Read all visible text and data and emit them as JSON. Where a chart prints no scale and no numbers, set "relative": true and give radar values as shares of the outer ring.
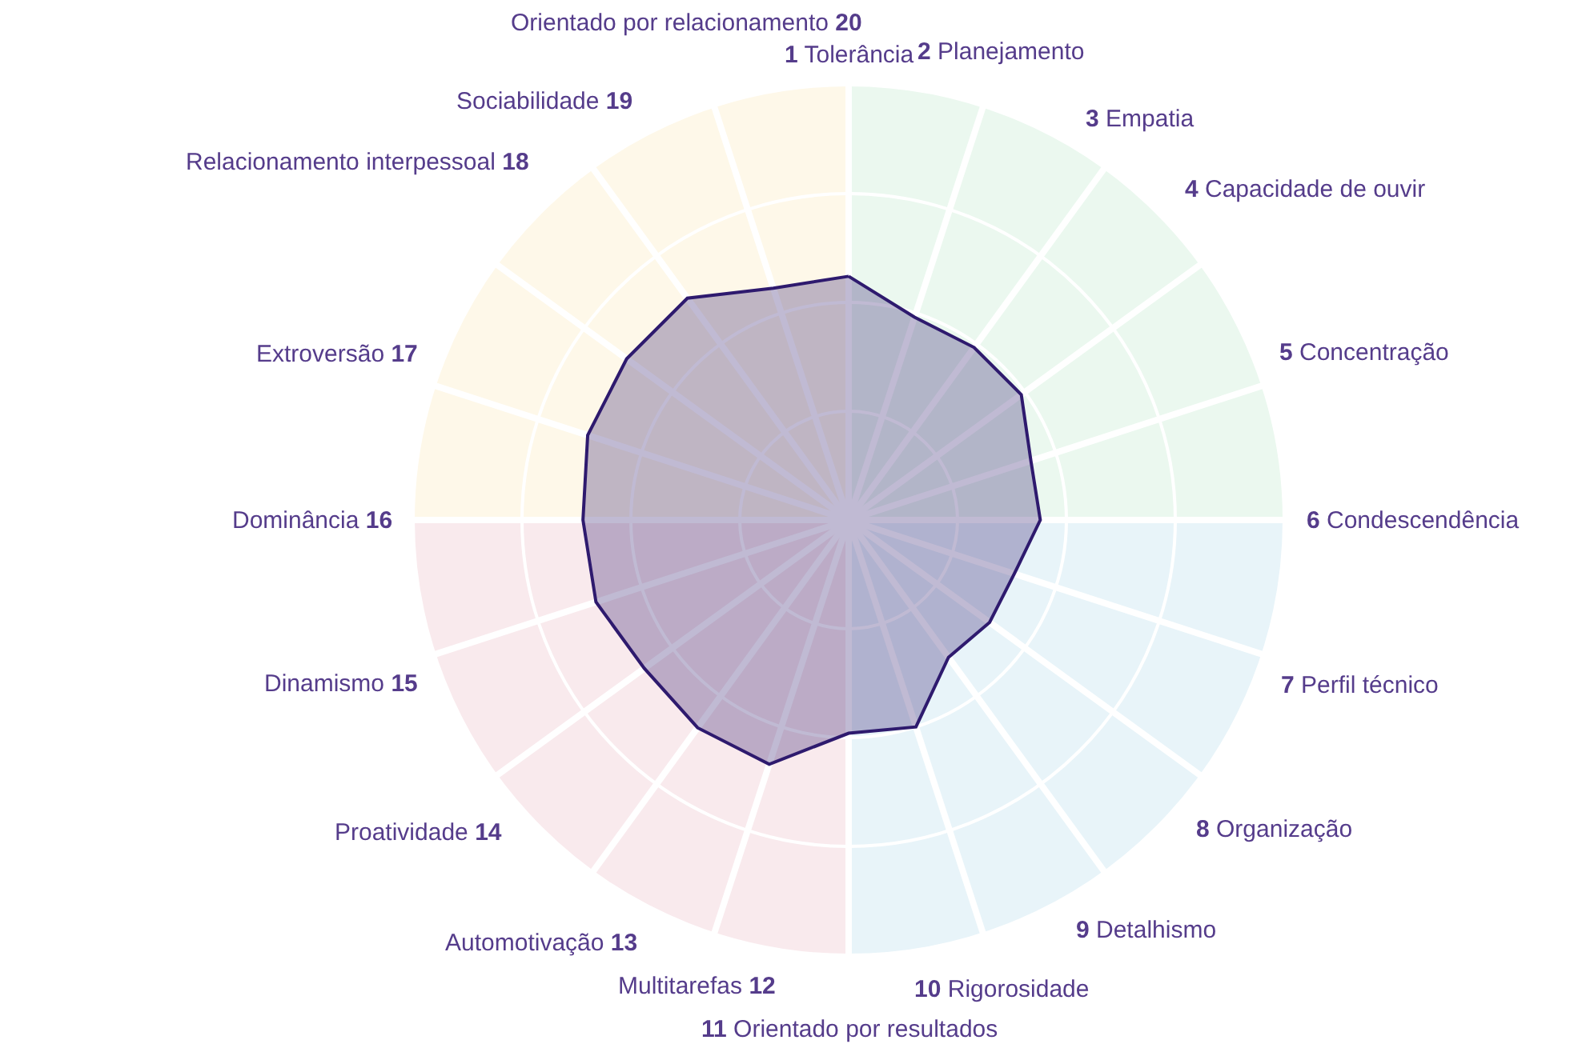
{
  "chart_data": {
    "type": "radar",
    "relative": true,
    "grid": true,
    "categories": [
      "1 Tolerância",
      "2 Planejamento",
      "3 Empatia",
      "4 Capacidade de ouvir",
      "5 Concentração",
      "6 Condescendência",
      "7 Perfil técnico",
      "8 Organização",
      "9 Detalhismo",
      "10 Rigorosidade",
      "11 Orientado por resultados",
      "Multitarefas 12",
      "Automotivação 13",
      "Proatividade 14",
      "Dinamismo 15",
      "Dominância 16",
      "Extroversão 17",
      "Relacionamento interpessoal 18",
      "Sociabilidade 19",
      "Orientado por relacionamento 20"
    ],
    "series": [
      {
        "color": "#2e1a6e",
        "values": [
          0.56,
          0.49,
          0.49,
          0.49,
          0.44,
          0.44,
          0.4,
          0.4,
          0.39,
          0.5,
          0.49,
          0.59,
          0.59,
          0.58,
          0.61,
          0.61,
          0.63,
          0.63,
          0.63,
          0.56
        ]
      }
    ]
  }
}
